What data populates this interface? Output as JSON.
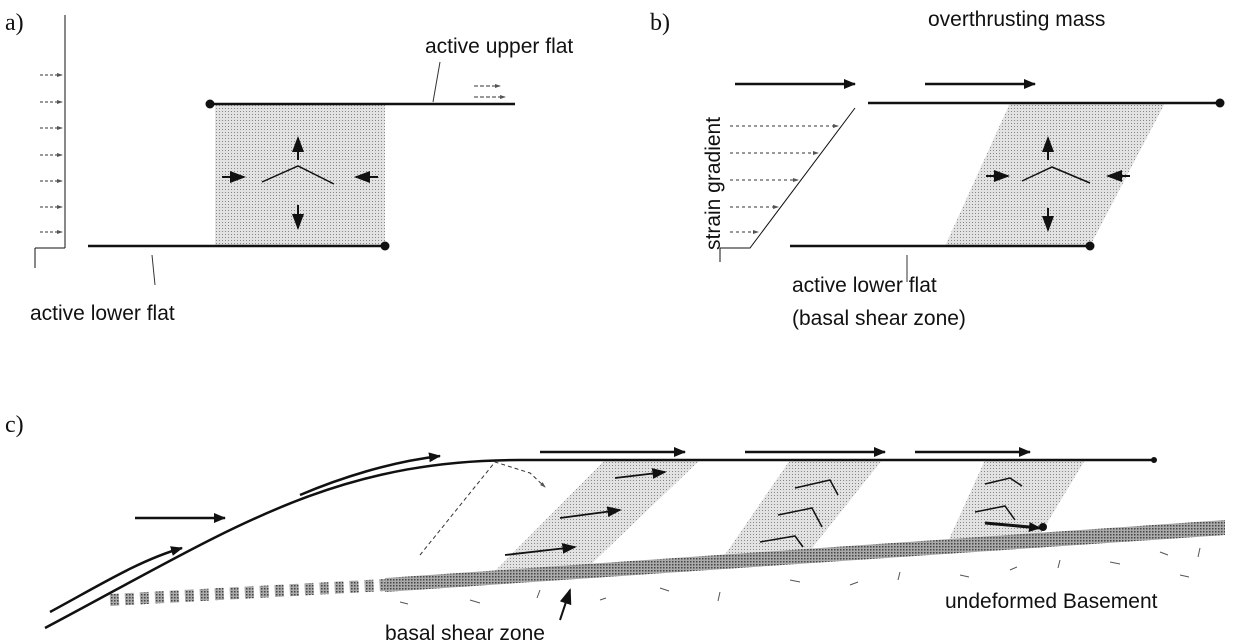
{
  "panel_a": {
    "label": "a)",
    "upper_flat": "active upper flat",
    "lower_flat": "active lower flat"
  },
  "panel_b": {
    "label": "b)",
    "mass": "overthrusting mass",
    "gradient": "strain gradient",
    "lower_flat": "active lower flat",
    "lower_flat_note": "(basal shear zone)"
  },
  "panel_c": {
    "label": "c)",
    "shear_zone": "basal shear zone",
    "basement": "undeformed Basement"
  }
}
